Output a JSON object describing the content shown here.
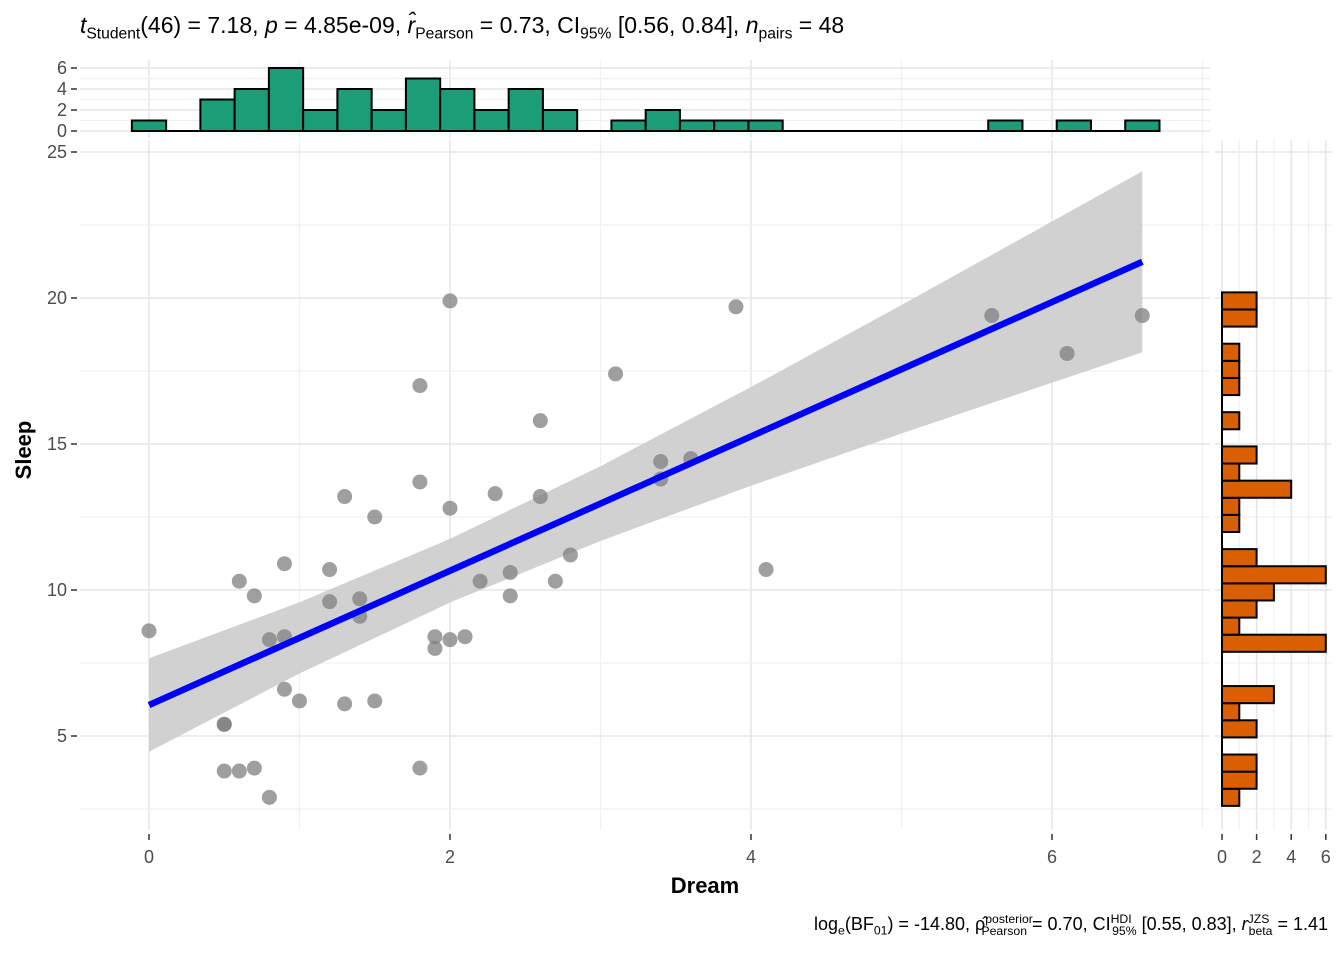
{
  "title": {
    "t_label": "t",
    "t_sub": "Student",
    "t_value": "(46) = 7.18, ",
    "p_label": "p",
    "p_value": " = 4.85e-09, ",
    "r_label": "r̂",
    "r_sub": "Pearson",
    "r_value": " = 0.73, CI",
    "ci_sub": "95%",
    "ci_value": " [0.56, 0.84], ",
    "n_label": "n",
    "n_sub": "pairs",
    "n_value": " = 48"
  },
  "subtitle": {
    "log_label": "log",
    "log_sub": "e",
    "bf_open": "(BF",
    "bf_sub": "01",
    "bf_value": ") = -14.80, ",
    "rho_label": "ρ̂",
    "rho_sup": "posterior",
    "rho_sub": "Pearson",
    "rho_value": " = 0.70, CI",
    "ci_sup": "HDI",
    "ci_sub": "95%",
    "ci_value": " [0.55, 0.83], ",
    "r_label": "r",
    "r_sup": "JZS",
    "r_sub": "beta",
    "r_value": " = 1.41"
  },
  "chart_data": {
    "type": "scatter",
    "xlabel": "Dream",
    "ylabel": "Sleep",
    "xlim": [
      -0.33,
      7.0
    ],
    "ylim": [
      2.1,
      25.4
    ],
    "xticks": [
      "0",
      "2",
      "4",
      "6"
    ],
    "xtick_values": [
      0,
      2,
      4,
      6
    ],
    "yticks": [
      "5",
      "10",
      "15",
      "20",
      "25"
    ],
    "ytick_values": [
      5,
      10,
      15,
      20,
      25
    ],
    "grid": true,
    "point_color": "#7f7f7f",
    "points": [
      [
        0,
        8.6
      ],
      [
        0.5,
        5.4
      ],
      [
        0.5,
        5.4
      ],
      [
        0.5,
        3.8
      ],
      [
        0.6,
        3.8
      ],
      [
        0.7,
        3.9
      ],
      [
        0.8,
        2.9
      ],
      [
        0.6,
        10.3
      ],
      [
        0.7,
        9.8
      ],
      [
        0.8,
        8.3
      ],
      [
        0.9,
        8.4
      ],
      [
        0.9,
        10.9
      ],
      [
        0.9,
        6.6
      ],
      [
        1.0,
        6.2
      ],
      [
        1.2,
        10.7
      ],
      [
        1.2,
        9.6
      ],
      [
        1.3,
        13.2
      ],
      [
        1.3,
        6.1
      ],
      [
        1.4,
        9.7
      ],
      [
        1.4,
        9.1
      ],
      [
        1.5,
        12.5
      ],
      [
        1.5,
        6.2
      ],
      [
        1.8,
        17.0
      ],
      [
        1.8,
        13.7
      ],
      [
        1.8,
        3.9
      ],
      [
        1.9,
        8.4
      ],
      [
        1.9,
        8.0
      ],
      [
        2.0,
        19.9
      ],
      [
        2.0,
        12.8
      ],
      [
        2.0,
        8.3
      ],
      [
        2.1,
        8.4
      ],
      [
        2.2,
        10.3
      ],
      [
        2.3,
        13.3
      ],
      [
        2.4,
        10.6
      ],
      [
        2.4,
        9.8
      ],
      [
        2.6,
        15.8
      ],
      [
        2.6,
        13.2
      ],
      [
        2.7,
        10.3
      ],
      [
        2.8,
        11.2
      ],
      [
        3.1,
        17.4
      ],
      [
        3.4,
        14.4
      ],
      [
        3.4,
        13.8
      ],
      [
        3.6,
        14.5
      ],
      [
        3.9,
        19.7
      ],
      [
        4.1,
        10.7
      ],
      [
        5.6,
        19.4
      ],
      [
        6.1,
        18.1
      ],
      [
        6.6,
        19.4
      ]
    ],
    "regression": {
      "color": "#0000ff",
      "band_color": "#cccccc",
      "x": [
        0,
        1,
        2,
        3,
        4,
        5,
        6,
        6.6
      ],
      "fit": [
        6.06,
        8.36,
        10.66,
        12.96,
        15.26,
        17.56,
        19.86,
        21.24
      ],
      "lower": [
        4.46,
        7.14,
        9.57,
        11.68,
        13.57,
        15.36,
        17.1,
        18.14
      ],
      "upper": [
        7.66,
        9.58,
        11.75,
        14.24,
        16.95,
        19.76,
        22.62,
        24.34
      ]
    },
    "x_histogram": {
      "color": "#1b9e77",
      "bin_start": 0,
      "bin_width": 0.2276,
      "counts": [
        1,
        0,
        3,
        4,
        6,
        2,
        4,
        2,
        5,
        4,
        2,
        4,
        2,
        0,
        1,
        2,
        1,
        1,
        1,
        0,
        0,
        0,
        0,
        0,
        0,
        1,
        0,
        1,
        0,
        1
      ],
      "ticks": [
        "0",
        "2",
        "4",
        "6"
      ],
      "tick_values": [
        0,
        2,
        4,
        6
      ]
    },
    "y_histogram": {
      "color": "#d95f02",
      "bin_start": 2.9,
      "bin_width": 0.5862,
      "counts": [
        1,
        2,
        2,
        0,
        2,
        1,
        3,
        0,
        0,
        6,
        1,
        2,
        3,
        6,
        2,
        0,
        1,
        1,
        4,
        1,
        2,
        0,
        1,
        0,
        1,
        1,
        1,
        0,
        2,
        2
      ],
      "ticks": [
        "0",
        "2",
        "4",
        "6"
      ],
      "tick_values": [
        0,
        2,
        4,
        6
      ]
    }
  }
}
